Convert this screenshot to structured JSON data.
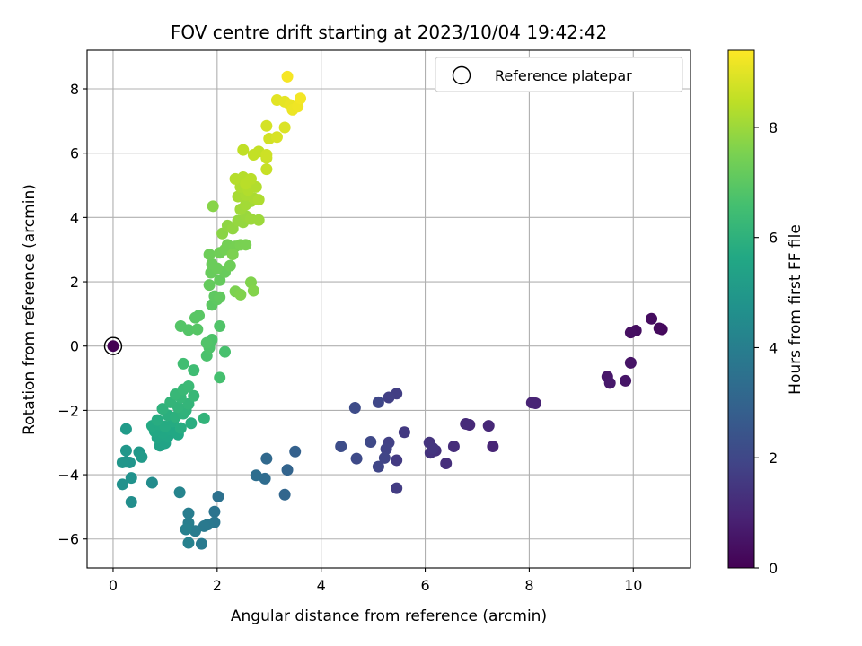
{
  "chart_data": {
    "type": "scatter",
    "title": "FOV centre drift starting at 2023/10/04 19:42:42",
    "xlabel": "Angular distance from reference (arcmin)",
    "ylabel": "Rotation from reference (arcmin)",
    "xlim": [
      -0.5,
      11.1
    ],
    "ylim": [
      -6.9,
      9.2
    ],
    "x_ticks": [
      0,
      2,
      4,
      6,
      8,
      10
    ],
    "y_ticks": [
      -6,
      -4,
      -2,
      0,
      2,
      4,
      6,
      8
    ],
    "grid": true,
    "legend": {
      "position": "top-right",
      "entries": [
        "Reference platepar"
      ]
    },
    "reference_point": {
      "x": 0,
      "y": 0
    },
    "colorbar": {
      "label": "Hours from first FF file",
      "colormap": "viridis",
      "range": [
        0,
        9.4
      ],
      "ticks": [
        0,
        2,
        4,
        6,
        8
      ]
    },
    "points": [
      [
        0.0,
        0.0,
        0.0
      ],
      [
        10.55,
        0.52,
        0.2
      ],
      [
        10.5,
        0.55,
        0.25
      ],
      [
        10.35,
        0.85,
        0.3
      ],
      [
        10.05,
        0.48,
        0.35
      ],
      [
        9.95,
        0.42,
        0.4
      ],
      [
        9.95,
        -0.52,
        0.5
      ],
      [
        9.85,
        -1.08,
        0.55
      ],
      [
        9.5,
        -0.95,
        0.6
      ],
      [
        9.55,
        -1.15,
        0.65
      ],
      [
        8.12,
        -1.78,
        0.9
      ],
      [
        8.05,
        -1.76,
        0.95
      ],
      [
        7.3,
        -3.12,
        1.0
      ],
      [
        7.22,
        -2.48,
        1.05
      ],
      [
        6.85,
        -2.45,
        1.1
      ],
      [
        6.78,
        -2.42,
        1.15
      ],
      [
        6.55,
        -3.12,
        1.2
      ],
      [
        6.4,
        -3.65,
        1.25
      ],
      [
        6.2,
        -3.25,
        1.3
      ],
      [
        6.1,
        -3.32,
        1.35
      ],
      [
        6.08,
        -3.0,
        1.4
      ],
      [
        6.15,
        -3.18,
        1.45
      ],
      [
        5.6,
        -2.68,
        1.55
      ],
      [
        5.45,
        -3.55,
        1.6
      ],
      [
        5.45,
        -4.42,
        1.65
      ],
      [
        5.45,
        -1.48,
        1.7
      ],
      [
        5.3,
        -1.6,
        1.75
      ],
      [
        5.3,
        -3.0,
        1.8
      ],
      [
        5.25,
        -3.2,
        1.85
      ],
      [
        5.22,
        -3.48,
        1.9
      ],
      [
        5.1,
        -3.75,
        1.95
      ],
      [
        5.1,
        -1.75,
        2.0
      ],
      [
        4.95,
        -2.98,
        2.05
      ],
      [
        4.68,
        -3.5,
        2.1
      ],
      [
        4.65,
        -1.92,
        2.15
      ],
      [
        4.38,
        -3.12,
        2.2
      ],
      [
        3.5,
        -3.28,
        2.9
      ],
      [
        3.35,
        -3.85,
        3.0
      ],
      [
        3.3,
        -4.62,
        3.1
      ],
      [
        2.95,
        -3.5,
        3.2
      ],
      [
        2.92,
        -4.12,
        3.3
      ],
      [
        2.75,
        -4.02,
        3.4
      ],
      [
        2.02,
        -4.68,
        3.5
      ],
      [
        1.95,
        -5.15,
        3.6
      ],
      [
        1.95,
        -5.48,
        3.7
      ],
      [
        1.82,
        -5.55,
        3.75
      ],
      [
        1.75,
        -5.6,
        3.8
      ],
      [
        1.7,
        -6.15,
        3.85
      ],
      [
        1.58,
        -5.75,
        3.9
      ],
      [
        1.45,
        -5.2,
        3.95
      ],
      [
        1.45,
        -5.5,
        4.0
      ],
      [
        1.4,
        -5.7,
        4.05
      ],
      [
        1.45,
        -6.12,
        4.1
      ],
      [
        1.28,
        -4.55,
        4.2
      ],
      [
        0.75,
        -4.25,
        4.5
      ],
      [
        0.35,
        -4.85,
        4.6
      ],
      [
        0.18,
        -4.3,
        4.7
      ],
      [
        0.35,
        -4.1,
        4.75
      ],
      [
        0.25,
        -3.6,
        4.8
      ],
      [
        0.32,
        -3.62,
        4.85
      ],
      [
        0.18,
        -3.62,
        4.9
      ],
      [
        0.25,
        -3.25,
        4.95
      ],
      [
        0.5,
        -3.3,
        5.0
      ],
      [
        0.55,
        -3.45,
        5.05
      ],
      [
        0.25,
        -2.58,
        5.1
      ],
      [
        0.9,
        -3.1,
        5.4
      ],
      [
        1.0,
        -3.02,
        5.45
      ],
      [
        0.85,
        -2.85,
        5.5
      ],
      [
        1.05,
        -2.82,
        5.55
      ],
      [
        0.95,
        -2.7,
        5.6
      ],
      [
        0.8,
        -2.65,
        5.6
      ],
      [
        1.1,
        -2.6,
        5.65
      ],
      [
        1.25,
        -2.75,
        5.65
      ],
      [
        0.75,
        -2.48,
        5.7
      ],
      [
        0.9,
        -2.45,
        5.7
      ],
      [
        1.0,
        -2.5,
        5.75
      ],
      [
        1.15,
        -2.35,
        5.75
      ],
      [
        0.85,
        -2.3,
        5.8
      ],
      [
        1.3,
        -2.55,
        5.8
      ],
      [
        1.5,
        -2.4,
        5.85
      ],
      [
        1.05,
        -2.15,
        5.9
      ],
      [
        1.2,
        -2.2,
        5.95
      ],
      [
        1.35,
        -2.1,
        6.0
      ],
      [
        0.95,
        -1.95,
        6.0
      ],
      [
        1.4,
        -2.0,
        6.05
      ],
      [
        1.75,
        -2.25,
        6.1
      ],
      [
        1.25,
        -1.9,
        6.1
      ],
      [
        1.45,
        -1.8,
        6.15
      ],
      [
        1.1,
        -1.75,
        6.15
      ],
      [
        1.3,
        -1.6,
        6.2
      ],
      [
        1.55,
        -1.55,
        6.25
      ],
      [
        1.2,
        -1.5,
        6.25
      ],
      [
        1.35,
        -1.35,
        6.3
      ],
      [
        1.45,
        -1.25,
        6.35
      ],
      [
        1.55,
        -0.75,
        6.45
      ],
      [
        1.35,
        -0.55,
        6.5
      ],
      [
        2.05,
        -0.98,
        6.6
      ],
      [
        2.15,
        -0.18,
        6.65
      ],
      [
        1.8,
        -0.3,
        6.7
      ],
      [
        1.85,
        -0.05,
        6.75
      ],
      [
        1.9,
        0.2,
        6.75
      ],
      [
        1.8,
        0.1,
        6.8
      ],
      [
        2.05,
        0.62,
        6.8
      ],
      [
        1.45,
        0.5,
        6.85
      ],
      [
        1.3,
        0.62,
        6.85
      ],
      [
        1.62,
        0.52,
        6.9
      ],
      [
        1.65,
        0.95,
        6.95
      ],
      [
        1.58,
        0.88,
        6.95
      ],
      [
        1.9,
        1.28,
        7.0
      ],
      [
        2.0,
        1.45,
        7.05
      ],
      [
        1.95,
        1.55,
        7.05
      ],
      [
        2.05,
        1.52,
        7.1
      ],
      [
        1.85,
        1.9,
        7.15
      ],
      [
        2.05,
        2.05,
        7.15
      ],
      [
        2.15,
        2.3,
        7.2
      ],
      [
        1.88,
        2.28,
        7.2
      ],
      [
        2.0,
        2.42,
        7.25
      ],
      [
        1.9,
        2.55,
        7.25
      ],
      [
        1.85,
        2.85,
        7.3
      ],
      [
        2.25,
        2.5,
        7.3
      ],
      [
        2.05,
        2.9,
        7.35
      ],
      [
        2.15,
        3.0,
        7.4
      ],
      [
        2.2,
        3.15,
        7.4
      ],
      [
        2.35,
        3.1,
        7.45
      ],
      [
        2.45,
        3.15,
        7.5
      ],
      [
        2.55,
        3.15,
        7.5
      ],
      [
        2.3,
        2.85,
        7.55
      ],
      [
        2.35,
        1.7,
        7.55
      ],
      [
        2.45,
        1.6,
        7.6
      ],
      [
        2.65,
        1.98,
        7.6
      ],
      [
        2.7,
        1.72,
        7.65
      ],
      [
        1.92,
        4.35,
        7.7
      ],
      [
        2.1,
        3.5,
        7.75
      ],
      [
        2.2,
        3.75,
        7.8
      ],
      [
        2.3,
        3.65,
        7.85
      ],
      [
        2.4,
        3.9,
        7.9
      ],
      [
        2.5,
        3.85,
        7.9
      ],
      [
        2.55,
        4.05,
        7.95
      ],
      [
        2.65,
        3.95,
        8.0
      ],
      [
        2.8,
        3.92,
        8.0
      ],
      [
        2.45,
        4.25,
        8.05
      ],
      [
        2.55,
        4.4,
        8.1
      ],
      [
        2.65,
        4.5,
        8.1
      ],
      [
        2.4,
        4.65,
        8.15
      ],
      [
        2.55,
        4.7,
        8.2
      ],
      [
        2.7,
        4.6,
        8.2
      ],
      [
        2.8,
        4.55,
        8.25
      ],
      [
        2.45,
        4.95,
        8.25
      ],
      [
        2.6,
        4.85,
        8.3
      ],
      [
        2.75,
        4.95,
        8.3
      ],
      [
        2.35,
        5.2,
        8.35
      ],
      [
        2.5,
        5.25,
        8.35
      ],
      [
        2.65,
        5.2,
        8.4
      ],
      [
        2.55,
        5.05,
        8.4
      ],
      [
        2.5,
        6.1,
        8.5
      ],
      [
        2.7,
        5.95,
        8.55
      ],
      [
        2.8,
        6.05,
        8.55
      ],
      [
        2.95,
        5.5,
        8.6
      ],
      [
        2.95,
        5.85,
        8.65
      ],
      [
        2.95,
        5.95,
        8.7
      ],
      [
        3.0,
        6.45,
        8.75
      ],
      [
        2.95,
        6.85,
        8.8
      ],
      [
        3.15,
        6.5,
        8.85
      ],
      [
        3.3,
        6.8,
        8.9
      ],
      [
        3.15,
        7.65,
        9.0
      ],
      [
        3.3,
        7.6,
        9.05
      ],
      [
        3.4,
        7.5,
        9.1
      ],
      [
        3.45,
        7.35,
        9.15
      ],
      [
        3.55,
        7.45,
        9.2
      ],
      [
        3.6,
        7.7,
        9.25
      ],
      [
        3.35,
        8.38,
        9.3
      ]
    ]
  }
}
